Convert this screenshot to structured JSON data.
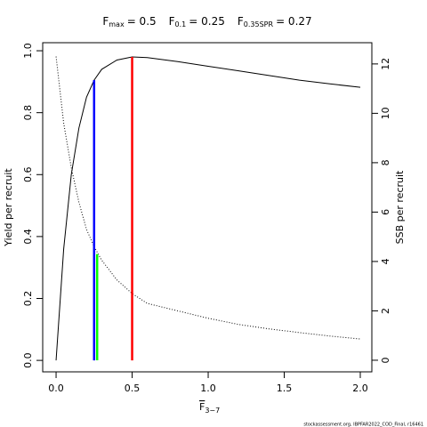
{
  "chart_data": {
    "type": "line",
    "reference_lines": [
      {
        "name": "F",
        "sub": "max",
        "label": "= 0.5",
        "x": 0.5,
        "y": 0.98,
        "color": "#ff0000",
        "axis": "y"
      },
      {
        "name": "F",
        "sub": "0.1",
        "label": "= 0.25",
        "x": 0.25,
        "y": 0.905,
        "color": "#0000ff",
        "axis": "y"
      },
      {
        "name": "F",
        "sub": "0.35SPR",
        "label": "= 0.27",
        "x": 0.27,
        "y": 4.3,
        "color": "#00ff00",
        "axis": "y2"
      }
    ],
    "xlabel": {
      "text": "F",
      "sub": "3−7"
    },
    "ylabel": "Yield per recruit",
    "y2label": "SSB per recruit",
    "footer": "stockassessment.org, IBPFAR2022_COD_Final, r16461",
    "x": [
      0,
      0.05,
      0.1,
      0.15,
      0.2,
      0.25,
      0.3,
      0.4,
      0.5,
      0.6,
      0.8,
      1.0,
      1.2,
      1.4,
      1.6,
      1.8,
      2.0
    ],
    "series": [
      {
        "name": "Yield per recruit",
        "color": "#000000",
        "dash": "solid",
        "axis": "y",
        "values": [
          0,
          0.36,
          0.6,
          0.75,
          0.85,
          0.905,
          0.94,
          0.97,
          0.98,
          0.978,
          0.965,
          0.95,
          0.935,
          0.92,
          0.905,
          0.893,
          0.882
        ]
      },
      {
        "name": "SSB per recruit",
        "color": "#000000",
        "dash": "dotted",
        "axis": "y2",
        "values": [
          12.3,
          9.6,
          7.8,
          6.4,
          5.3,
          4.6,
          4.05,
          3.25,
          2.7,
          2.3,
          2.0,
          1.7,
          1.45,
          1.27,
          1.12,
          0.98,
          0.86
        ]
      }
    ],
    "xlim": [
      -0.088,
      2.076
    ],
    "xticks": [
      {
        "value": 0,
        "label": "0.0"
      },
      0.5,
      {
        "value": 1,
        "label": "1.0"
      },
      1.5,
      {
        "value": 2,
        "label": "2.0"
      }
    ],
    "ylim": [
      -0.037,
      1.026
    ],
    "yticks": [
      {
        "value": 0,
        "label": "0.0"
      },
      0.2,
      0.4,
      0.6,
      0.8,
      {
        "value": 1,
        "label": "1.0"
      }
    ],
    "y2lim": [
      -0.47,
      12.86
    ],
    "y2ticks": [
      0,
      2,
      4,
      6,
      8,
      10,
      12
    ]
  }
}
